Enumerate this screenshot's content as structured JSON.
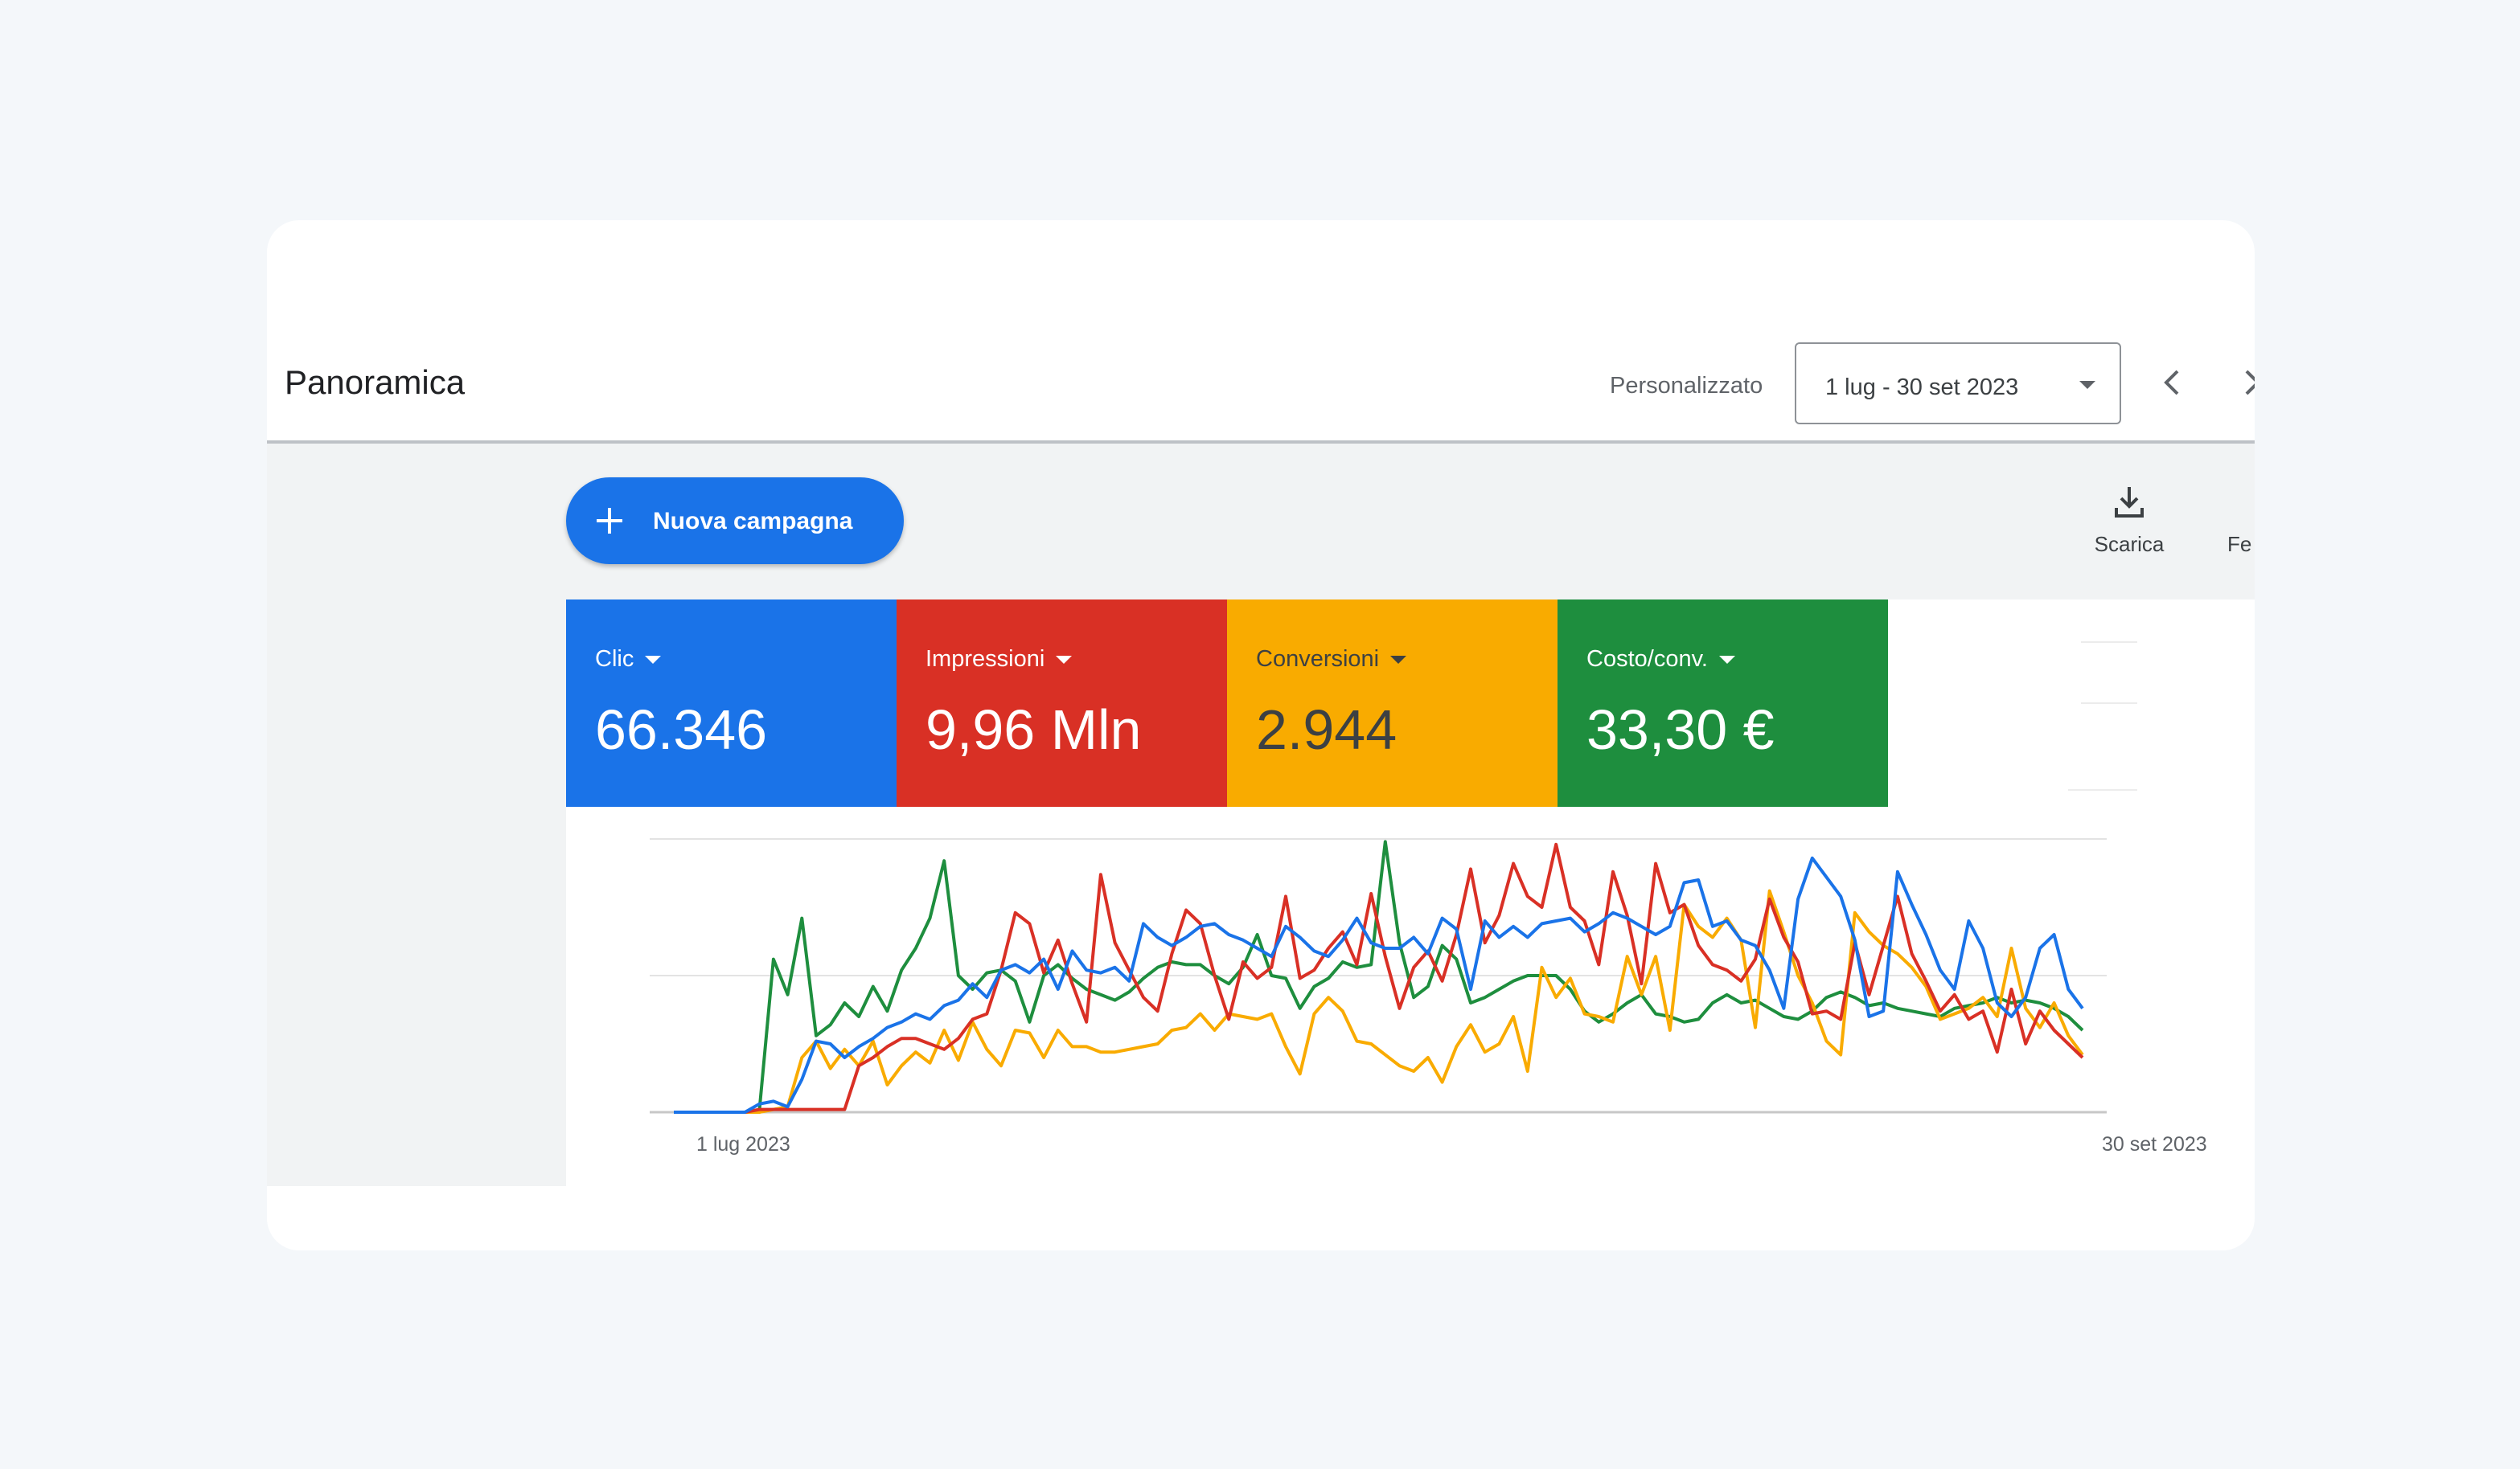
{
  "header": {
    "title": "Panoramica",
    "date_preset": "Personalizzato",
    "date_range": "1 lug - 30 set 2023"
  },
  "toolbar": {
    "new_campaign_label": "Nuova campagna",
    "download_label": "Scarica",
    "cutoff_label": "Fe"
  },
  "metrics": [
    {
      "name": "Clic",
      "value": "66.346",
      "color": "#1a73e8"
    },
    {
      "name": "Impressioni",
      "value": "9,96 Mln",
      "color": "#d93025"
    },
    {
      "name": "Conversioni",
      "value": "2.944",
      "color": "#f9ab00"
    },
    {
      "name": "Costo/conv.",
      "value": "33,30 €",
      "color": "#1e8e3e"
    }
  ],
  "icons": [
    "plus-icon",
    "chevron-down-icon",
    "chevron-left-icon",
    "chevron-right-icon",
    "download-icon"
  ],
  "chart_data": {
    "type": "line",
    "x_start_label": "1 lug 2023",
    "x_end_label": "30 set 2023",
    "grid": true,
    "y_normalized": true,
    "ylim": [
      0,
      1
    ],
    "series": [
      {
        "name": "Clic",
        "color": "#1a73e8",
        "values": [
          0,
          0,
          0,
          0,
          0,
          0,
          0.03,
          0.04,
          0.02,
          0.12,
          0.26,
          0.25,
          0.2,
          0.24,
          0.27,
          0.31,
          0.33,
          0.36,
          0.34,
          0.39,
          0.41,
          0.47,
          0.42,
          0.52,
          0.54,
          0.51,
          0.56,
          0.45,
          0.59,
          0.52,
          0.51,
          0.53,
          0.48,
          0.69,
          0.64,
          0.61,
          0.64,
          0.68,
          0.69,
          0.65,
          0.63,
          0.6,
          0.57,
          0.68,
          0.64,
          0.59,
          0.57,
          0.63,
          0.71,
          0.62,
          0.6,
          0.6,
          0.64,
          0.58,
          0.71,
          0.67,
          0.45,
          0.7,
          0.64,
          0.68,
          0.64,
          0.69,
          0.7,
          0.71,
          0.66,
          0.69,
          0.73,
          0.71,
          0.68,
          0.65,
          0.68,
          0.84,
          0.85,
          0.68,
          0.7,
          0.63,
          0.61,
          0.52,
          0.38,
          0.78,
          0.93,
          0.86,
          0.79,
          0.63,
          0.35,
          0.37,
          0.88,
          0.76,
          0.65,
          0.52,
          0.45,
          0.7,
          0.6,
          0.4,
          0.35,
          0.42,
          0.6,
          0.65,
          0.45,
          0.38
        ]
      },
      {
        "name": "Impressioni",
        "color": "#d93025",
        "values": [
          0,
          0,
          0,
          0,
          0,
          0,
          0.01,
          0.01,
          0.01,
          0.01,
          0.01,
          0.01,
          0.01,
          0.17,
          0.2,
          0.24,
          0.27,
          0.27,
          0.25,
          0.23,
          0.27,
          0.34,
          0.36,
          0.52,
          0.73,
          0.69,
          0.51,
          0.63,
          0.47,
          0.33,
          0.87,
          0.62,
          0.52,
          0.42,
          0.37,
          0.58,
          0.74,
          0.69,
          0.5,
          0.34,
          0.55,
          0.49,
          0.53,
          0.79,
          0.49,
          0.52,
          0.6,
          0.66,
          0.54,
          0.8,
          0.57,
          0.38,
          0.53,
          0.59,
          0.48,
          0.65,
          0.89,
          0.62,
          0.72,
          0.91,
          0.79,
          0.75,
          0.98,
          0.75,
          0.7,
          0.54,
          0.88,
          0.72,
          0.47,
          0.91,
          0.73,
          0.76,
          0.61,
          0.54,
          0.52,
          0.48,
          0.56,
          0.78,
          0.64,
          0.55,
          0.36,
          0.37,
          0.34,
          0.62,
          0.43,
          0.61,
          0.79,
          0.58,
          0.48,
          0.37,
          0.43,
          0.34,
          0.37,
          0.22,
          0.45,
          0.25,
          0.37,
          0.3,
          0.25,
          0.2
        ]
      },
      {
        "name": "Conversioni",
        "color": "#f9ab00",
        "values": [
          0,
          0,
          0,
          0,
          0,
          0,
          0,
          0.01,
          0.02,
          0.2,
          0.26,
          0.16,
          0.23,
          0.17,
          0.26,
          0.1,
          0.17,
          0.22,
          0.18,
          0.3,
          0.19,
          0.33,
          0.23,
          0.17,
          0.3,
          0.29,
          0.2,
          0.3,
          0.24,
          0.24,
          0.22,
          0.22,
          0.23,
          0.24,
          0.25,
          0.3,
          0.31,
          0.36,
          0.3,
          0.36,
          0.35,
          0.34,
          0.36,
          0.24,
          0.14,
          0.36,
          0.42,
          0.37,
          0.26,
          0.25,
          0.21,
          0.17,
          0.15,
          0.2,
          0.11,
          0.24,
          0.32,
          0.22,
          0.25,
          0.35,
          0.15,
          0.53,
          0.42,
          0.49,
          0.36,
          0.35,
          0.33,
          0.57,
          0.43,
          0.57,
          0.3,
          0.76,
          0.68,
          0.64,
          0.71,
          0.63,
          0.31,
          0.81,
          0.66,
          0.5,
          0.4,
          0.26,
          0.21,
          0.73,
          0.66,
          0.61,
          0.58,
          0.53,
          0.46,
          0.34,
          0.36,
          0.38,
          0.42,
          0.35,
          0.6,
          0.38,
          0.31,
          0.4,
          0.28,
          0.21
        ]
      },
      {
        "name": "Costo/conv.",
        "color": "#1e8e3e",
        "values": [
          0,
          0,
          0,
          0,
          0,
          0,
          0,
          0.56,
          0.43,
          0.71,
          0.28,
          0.32,
          0.4,
          0.35,
          0.46,
          0.37,
          0.52,
          0.6,
          0.71,
          0.92,
          0.5,
          0.45,
          0.51,
          0.52,
          0.48,
          0.33,
          0.5,
          0.54,
          0.49,
          0.45,
          0.43,
          0.41,
          0.44,
          0.49,
          0.53,
          0.55,
          0.54,
          0.54,
          0.5,
          0.47,
          0.53,
          0.65,
          0.5,
          0.49,
          0.38,
          0.46,
          0.49,
          0.55,
          0.53,
          0.54,
          0.99,
          0.62,
          0.42,
          0.46,
          0.61,
          0.56,
          0.4,
          0.42,
          0.45,
          0.48,
          0.5,
          0.5,
          0.5,
          0.45,
          0.37,
          0.33,
          0.36,
          0.4,
          0.43,
          0.36,
          0.35,
          0.33,
          0.34,
          0.4,
          0.43,
          0.4,
          0.41,
          0.38,
          0.35,
          0.34,
          0.37,
          0.42,
          0.44,
          0.42,
          0.39,
          0.4,
          0.38,
          0.37,
          0.36,
          0.35,
          0.38,
          0.39,
          0.4,
          0.42,
          0.4,
          0.41,
          0.4,
          0.38,
          0.35,
          0.3
        ]
      }
    ]
  }
}
